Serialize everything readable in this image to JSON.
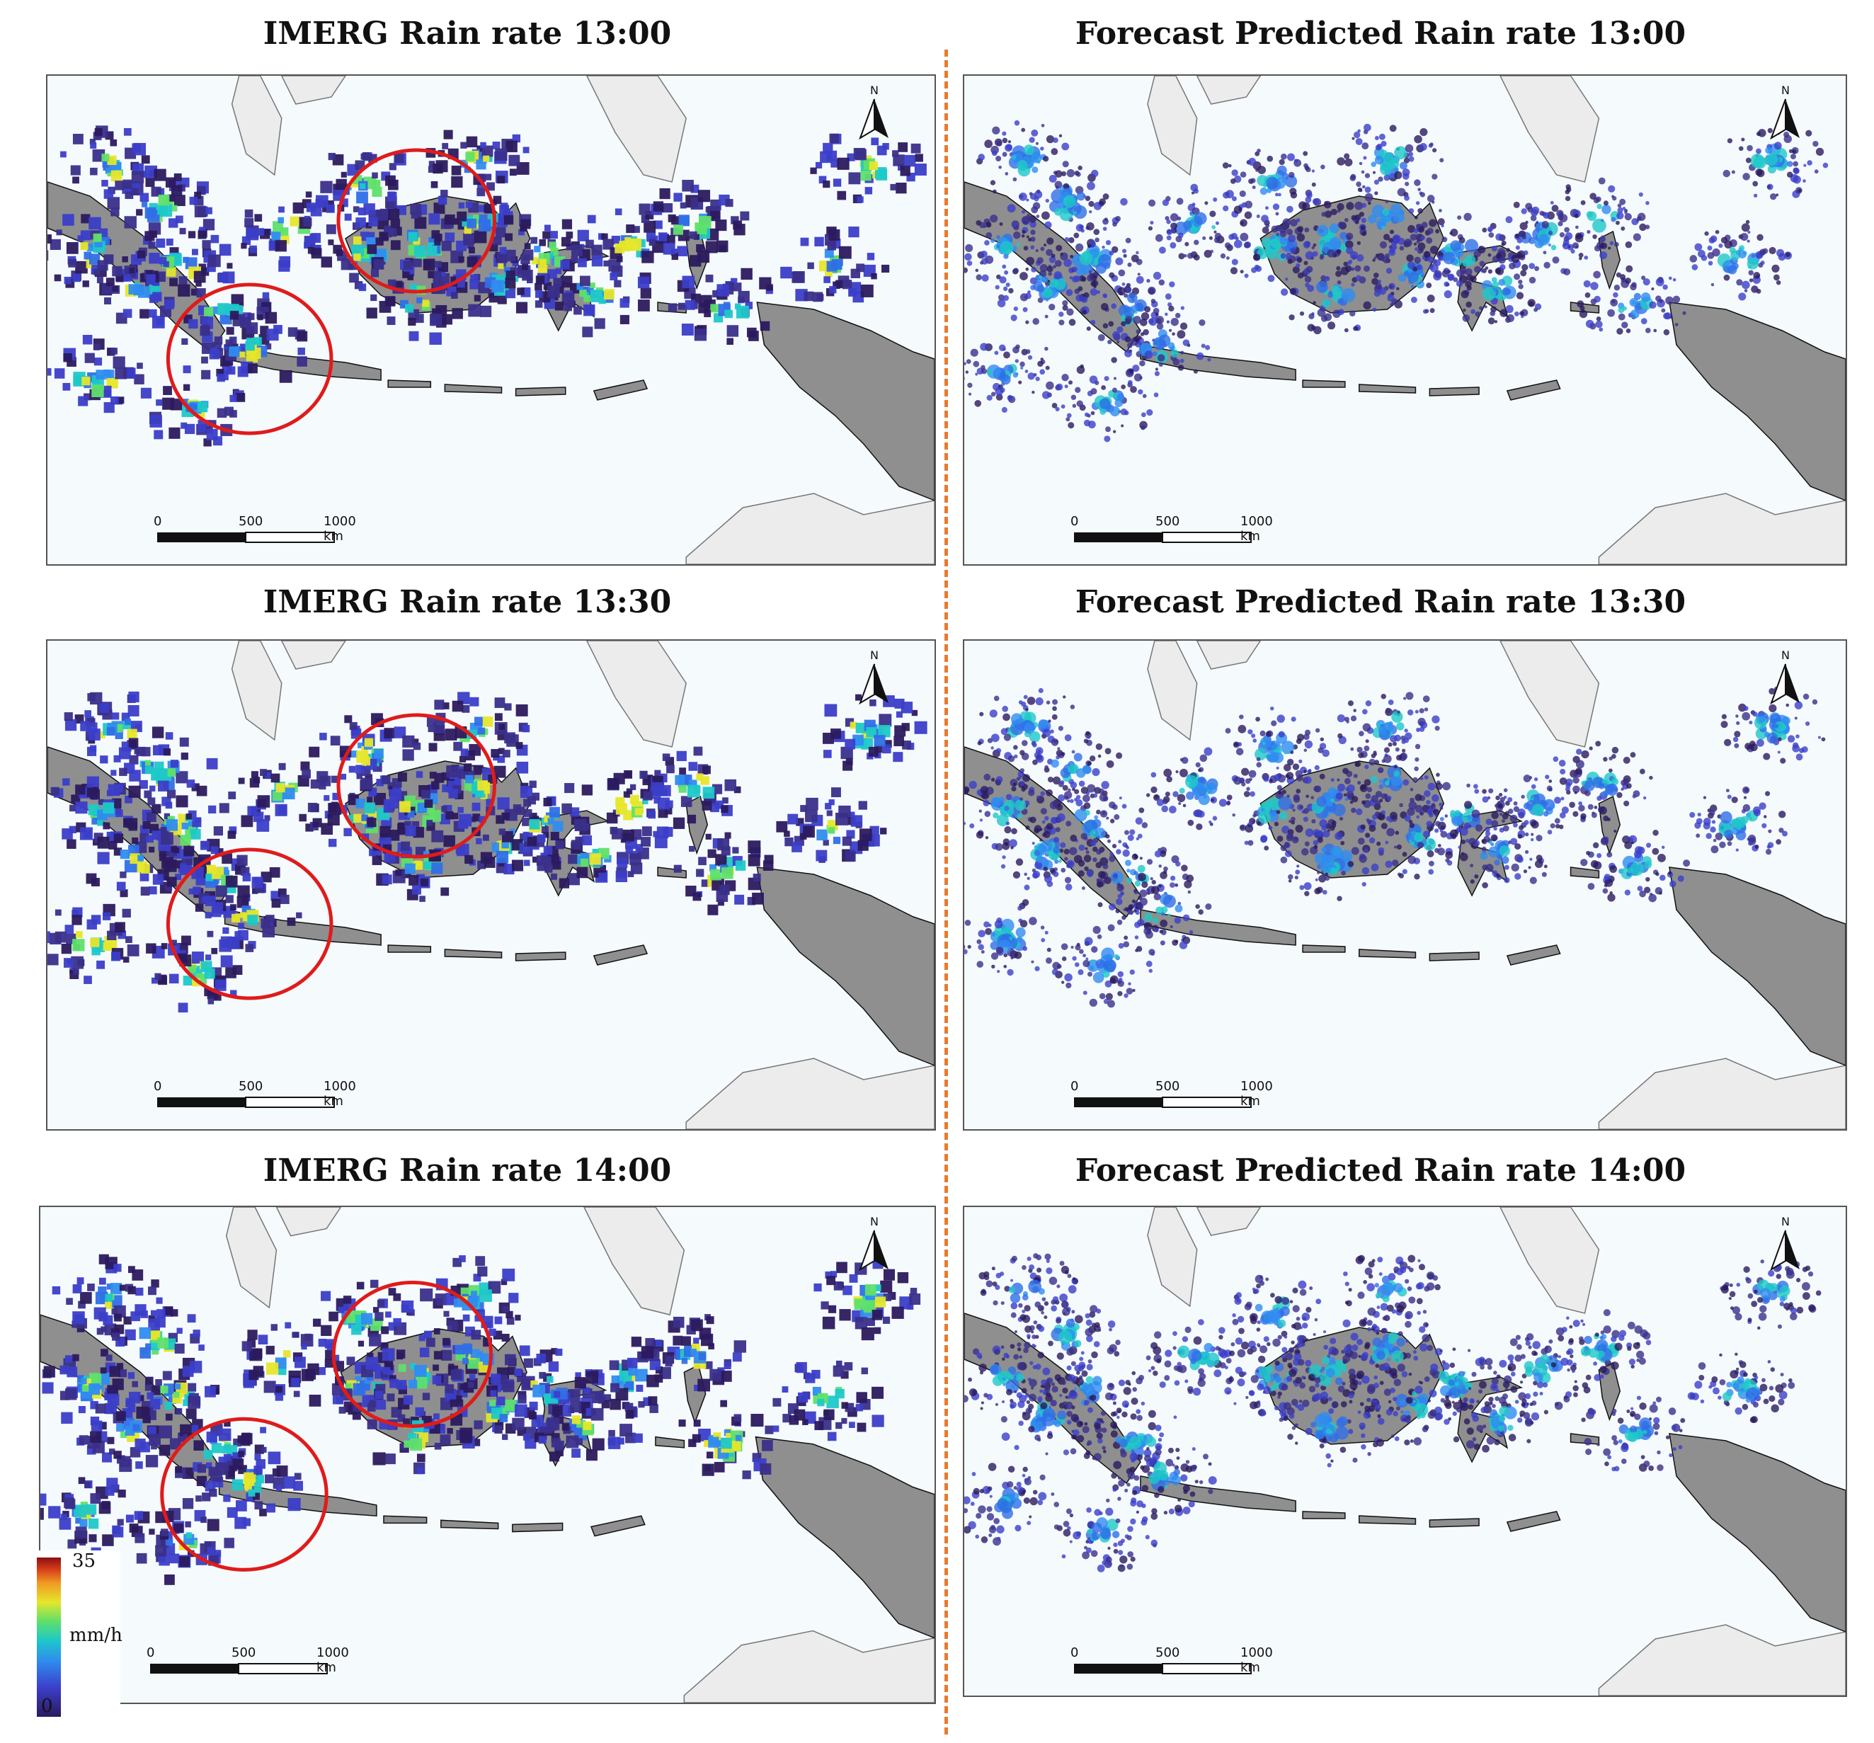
{
  "panels": [
    {
      "title": "IMERG Rain rate 13:00"
    },
    {
      "title": "Forecast Predicted Rain rate 13:00"
    },
    {
      "title": "IMERG Rain rate 13:30"
    },
    {
      "title": "Forecast Predicted Rain rate 13:30"
    },
    {
      "title": "IMERG Rain rate 14:00"
    },
    {
      "title": "Forecast Predicted Rain rate 14:00"
    }
  ],
  "scalebar": {
    "tick0": "0",
    "tick1": "500",
    "tick2": "1000 km"
  },
  "north_label": "N",
  "legend": {
    "max": "35",
    "unit": "mm/h",
    "min": "0"
  },
  "colors": {
    "land": "#8f8f8f",
    "neighbor_land": "#ececec",
    "sea": "#f5fafd",
    "circle": "#e01b1b",
    "divider": "#e87a2e"
  }
}
